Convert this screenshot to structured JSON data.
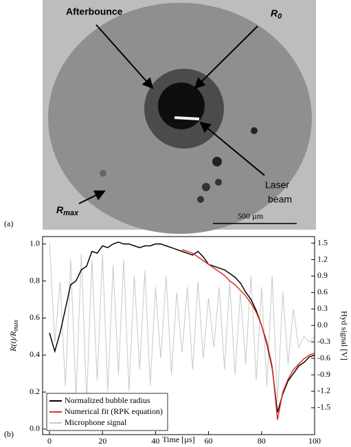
{
  "panel_a": {
    "label": "(a)",
    "afterbounce": "Afterbounce",
    "r0": "R",
    "r0_sub": "0",
    "laser_1": "Laser",
    "laser_2": "beam",
    "rmax": "R",
    "rmax_sub": "max",
    "scale_bar": "500 µm"
  },
  "chart_data": {
    "type": "line",
    "panel_label": "(b)",
    "xlabel": "Time [µs]",
    "ylabel": "R(t)/R",
    "ylabel_sub": "max",
    "y2label": "Hyd signal [V]",
    "x": [
      0,
      2,
      4,
      6,
      8,
      10,
      12,
      14,
      16,
      18,
      20,
      22,
      24,
      26,
      28,
      30,
      32,
      34,
      36,
      38,
      40,
      42,
      44,
      46,
      48,
      50,
      52,
      54,
      56,
      58,
      60,
      62,
      64,
      66,
      68,
      70,
      72,
      74,
      76,
      78,
      80,
      82,
      84,
      86,
      88,
      90,
      92,
      94,
      96,
      98,
      100
    ],
    "series": [
      {
        "name": "Microphone signal",
        "color": "#c8c8c8",
        "axis": "y2",
        "values": [
          1.5,
          -0.3,
          0.8,
          -1.1,
          1.2,
          -1.3,
          1.3,
          -1.4,
          1.2,
          -1.0,
          1.3,
          -1.2,
          1.1,
          -0.9,
          1.2,
          -1.2,
          0.9,
          -0.8,
          1.0,
          -1.1,
          0.7,
          -0.6,
          0.9,
          -0.9,
          0.6,
          -0.5,
          0.7,
          -0.8,
          0.8,
          -0.6,
          0.5,
          -0.4,
          0.7,
          -0.8,
          0.8,
          -0.9,
          0.6,
          -0.7,
          0.9,
          -1.0,
          0.7,
          -1.1,
          0.9,
          -1.4,
          0.6,
          -0.7,
          0.3,
          -0.4,
          -0.2,
          -0.3,
          -0.2
        ]
      },
      {
        "name": "Normalized bubble radius",
        "color": "#000000",
        "values": [
          0.52,
          0.42,
          0.52,
          0.65,
          0.78,
          0.8,
          0.86,
          0.88,
          0.96,
          0.95,
          0.99,
          0.98,
          1.0,
          1.01,
          1.0,
          1.0,
          0.99,
          0.98,
          0.99,
          0.99,
          1.0,
          1.0,
          0.99,
          0.98,
          0.97,
          0.96,
          0.95,
          0.94,
          0.96,
          0.93,
          0.89,
          0.88,
          0.87,
          0.86,
          0.84,
          0.82,
          0.79,
          0.74,
          0.7,
          0.64,
          0.56,
          0.46,
          0.33,
          0.09,
          0.19,
          0.26,
          0.3,
          0.34,
          0.36,
          0.39,
          0.4
        ]
      },
      {
        "name": "Numerical fit (RPK equation)",
        "color": "#d9321f",
        "values": [
          null,
          null,
          null,
          null,
          null,
          null,
          null,
          null,
          null,
          null,
          null,
          null,
          null,
          null,
          null,
          null,
          null,
          null,
          null,
          null,
          null,
          null,
          null,
          null,
          null,
          0.97,
          0.96,
          0.95,
          0.93,
          0.91,
          0.89,
          0.87,
          0.85,
          0.83,
          0.8,
          0.78,
          0.75,
          0.72,
          0.68,
          0.63,
          0.56,
          0.47,
          0.34,
          0.05,
          0.2,
          0.27,
          0.32,
          0.35,
          0.38,
          0.4,
          0.41
        ]
      }
    ],
    "xlim": [
      -2.6,
      100
    ],
    "xticks": [
      0,
      20,
      40,
      60,
      80,
      100
    ],
    "ylim": [
      -0.03,
      1.04
    ],
    "yticks": [
      {
        "value": 0,
        "label": "0.0"
      },
      0.2,
      0.4,
      0.6,
      0.8,
      {
        "value": 1,
        "label": "1.0"
      }
    ],
    "y2lim": [
      -1.99,
      1.62
    ],
    "y2ticks": [
      1.5,
      1.2,
      0.9,
      0.6,
      0.3,
      {
        "value": 0,
        "label": "0.0"
      },
      -0.3,
      -0.6,
      -0.9,
      -1.2,
      -1.5
    ],
    "legend": "lower left",
    "legend_order": [
      1,
      2,
      0
    ]
  }
}
